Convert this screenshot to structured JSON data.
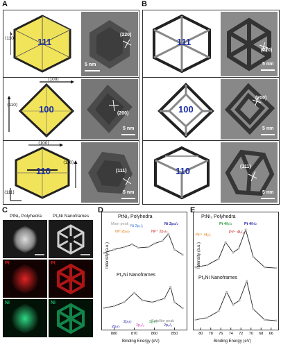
{
  "panels": {
    "A": "A",
    "B": "B",
    "C": "C",
    "D": "D",
    "E": "E"
  },
  "A": {
    "rows": [
      {
        "facet": "111",
        "dirs": [
          "⟨110⟩"
        ],
        "lattice": "(220)",
        "scale": "5 nm"
      },
      {
        "facet": "100",
        "dirs": [
          "⟨100⟩",
          "⟨110⟩"
        ],
        "lattice": "(200)",
        "scale": "5 nm"
      },
      {
        "facet": "110",
        "dirs": [
          "⟨100⟩",
          "⟨110⟩",
          "⟨111⟩"
        ],
        "lattice": "(111)",
        "scale": "5 nm"
      }
    ]
  },
  "B": {
    "rows": [
      {
        "facet": "111",
        "lattice": "(220)",
        "scale": "5 nm"
      },
      {
        "facet": "100",
        "lattice": "(200)",
        "scale": "5 nm"
      },
      {
        "facet": "110",
        "lattice": "(111)",
        "scale": "5 nm"
      }
    ]
  },
  "C": {
    "col_titles": [
      "PtNi₃ Polyhedra",
      "Pt₃Ni Nanoframes"
    ],
    "row_labels": [
      "Pt",
      "Pt",
      "Ni",
      "Ni"
    ]
  },
  "D": {
    "title_top": "PtNi₃ Polyhedra",
    "title_bottom": "Pt₃Ni Nanoframes",
    "labels": {
      "main_peak": "Main peak",
      "ni0_2p32": "Ni⁰ 2p₃/₂",
      "ni2p12": "Ni 2p₁/₂",
      "ni2p32_blue": "Ni 2p₃/₂",
      "ni2plus": "Ni²⁺ 2p₃/₂",
      "ni2plus_left": "Ni²⁺ 2p₁/₂",
      "sat": "Satellite peak",
      "b_2p12": "2p₁/₂",
      "b_2p12b": "2p₁/₂",
      "b_2p32a": "2p₃/₂",
      "b_2p32b": "2p₃/₂",
      "b_2p32c": "2p₃/₂"
    },
    "xlabel": "Binding Energy (eV)",
    "ylabel": "Intensity (a.u.)",
    "xticks": [
      "880",
      "870",
      "860",
      "850"
    ]
  },
  "E": {
    "title_top": "PtNi₃ Polyhedra",
    "title_bottom": "Pt₃Ni Nanoframes",
    "labels": {
      "pt4f52": "Pt 4f₅/₂",
      "pt4f72": "Pt 4f₇/₂",
      "pt2p_52": "Pt²⁺ 4f₅/₂",
      "pt2p_72": "Pt²⁺ 4f₇/₂"
    },
    "xlabel": "Binding Energy (eV)",
    "ylabel": "Intensity (a.u.)",
    "xticks": [
      "80",
      "78",
      "76",
      "74",
      "72",
      "70",
      "68",
      "66"
    ]
  },
  "chart_data": [
    {
      "type": "line",
      "title": "PtNi₃ Polyhedra",
      "xlabel": "Binding Energy (eV)",
      "ylabel": "Intensity (a.u.)",
      "xlim": [
        885,
        845
      ],
      "series": [
        {
          "name": "Ni 2p",
          "x": [
            885,
            880,
            875,
            871,
            868,
            863,
            860,
            856,
            853,
            850,
            846
          ],
          "y": [
            0.45,
            0.55,
            0.62,
            0.7,
            0.6,
            0.62,
            0.72,
            0.8,
            1.0,
            0.55,
            0.4
          ]
        }
      ]
    },
    {
      "type": "line",
      "title": "Pt₃Ni Nanoframes",
      "xlabel": "Binding Energy (eV)",
      "ylabel": "Intensity (a.u.)",
      "xlim": [
        885,
        845
      ],
      "series": [
        {
          "name": "Ni 2p",
          "x": [
            885,
            880,
            875,
            870,
            866,
            861,
            858,
            855,
            852,
            850,
            846
          ],
          "y": [
            0.35,
            0.4,
            0.5,
            0.75,
            0.55,
            0.5,
            0.55,
            0.6,
            0.9,
            0.5,
            0.35
          ]
        }
      ]
    },
    {
      "type": "line",
      "title": "PtNi₃ Polyhedra",
      "xlabel": "Binding Energy (eV)",
      "ylabel": "Intensity (a.u.)",
      "xlim": [
        80,
        66
      ],
      "series": [
        {
          "name": "Pt 4f",
          "x": [
            80,
            78,
            76,
            74.8,
            73.5,
            72.5,
            71.3,
            70,
            68,
            66
          ],
          "y": [
            0.1,
            0.15,
            0.3,
            0.7,
            0.45,
            0.55,
            1.0,
            0.35,
            0.1,
            0.08
          ]
        }
      ]
    },
    {
      "type": "line",
      "title": "Pt₃Ni Nanoframes",
      "xlabel": "Binding Energy (eV)",
      "ylabel": "Intensity (a.u.)",
      "xlim": [
        80,
        66
      ],
      "series": [
        {
          "name": "Pt 4f",
          "x": [
            80,
            78,
            76,
            74.6,
            73.5,
            72.4,
            71.1,
            70,
            68,
            66
          ],
          "y": [
            0.1,
            0.15,
            0.3,
            0.75,
            0.45,
            0.55,
            1.0,
            0.35,
            0.1,
            0.08
          ]
        }
      ]
    }
  ],
  "colors": {
    "yellow": "#f2e45a",
    "dark_edge": "#222222",
    "facet_text": "#1b2fa8",
    "pt_red": "#d11d1d",
    "ni_green": "#19b86a"
  }
}
